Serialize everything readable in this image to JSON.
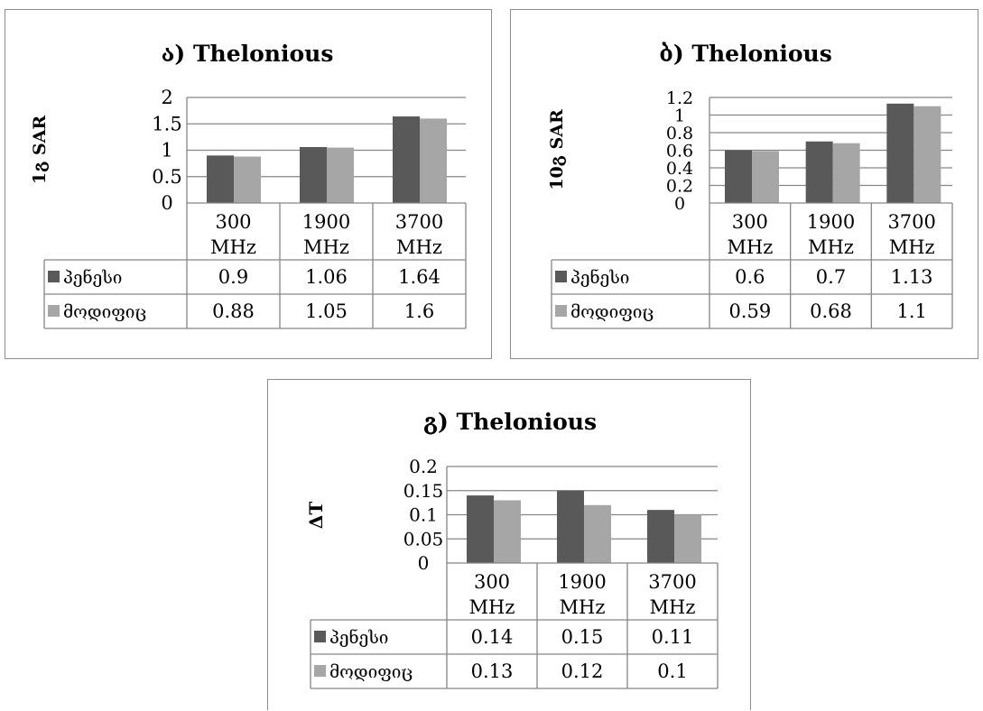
{
  "chart_data": [
    {
      "type": "bar",
      "title": "ა) Thelonious",
      "ylabel": "1გ SAR",
      "categories": [
        "300 MHz",
        "1900 MHz",
        "3700 MHz"
      ],
      "ylim": [
        0,
        2
      ],
      "yticks": [
        "2",
        "1.5",
        "1",
        "0.5",
        "0"
      ],
      "series": [
        {
          "name": "პენესი",
          "values": [
            0.9,
            1.06,
            1.64
          ],
          "display": [
            "0.9",
            "1.06",
            "1.64"
          ],
          "color": "#595959"
        },
        {
          "name": "მოდიფიც",
          "values": [
            0.88,
            1.05,
            1.6
          ],
          "display": [
            "0.88",
            "1.05",
            "1.6"
          ],
          "color": "#a6a6a6"
        }
      ],
      "legend": "data table",
      "grid": true
    },
    {
      "type": "bar",
      "title": "ბ) Thelonious",
      "ylabel": "10გ SAR",
      "categories": [
        "300 MHz",
        "1900 MHz",
        "3700 MHz"
      ],
      "ylim": [
        0,
        1.2
      ],
      "yticks": [
        "1.2",
        "1",
        "0.8",
        "0.6",
        "0.4",
        "0.2",
        "0"
      ],
      "series": [
        {
          "name": "პენესი",
          "values": [
            0.6,
            0.7,
            1.13
          ],
          "display": [
            "0.6",
            "0.7",
            "1.13"
          ],
          "color": "#595959"
        },
        {
          "name": "მოდიფიც",
          "values": [
            0.59,
            0.68,
            1.1
          ],
          "display": [
            "0.59",
            "0.68",
            "1.1"
          ],
          "color": "#a6a6a6"
        }
      ],
      "legend": "data table",
      "grid": true
    },
    {
      "type": "bar",
      "title": "გ) Thelonious",
      "ylabel": "ΔT",
      "categories": [
        "300 MHz",
        "1900 MHz",
        "3700 MHz"
      ],
      "ylim": [
        0,
        0.2
      ],
      "yticks": [
        "0.2",
        "0.15",
        "0.1",
        "0.05",
        "0"
      ],
      "series": [
        {
          "name": "პენესი",
          "values": [
            0.14,
            0.15,
            0.11
          ],
          "display": [
            "0.14",
            "0.15",
            "0.11"
          ],
          "color": "#595959"
        },
        {
          "name": "მოდიფიც",
          "values": [
            0.13,
            0.12,
            0.1
          ],
          "display": [
            "0.13",
            "0.12",
            "0.1"
          ],
          "color": "#a6a6a6"
        }
      ],
      "legend": "data table",
      "grid": true
    }
  ]
}
